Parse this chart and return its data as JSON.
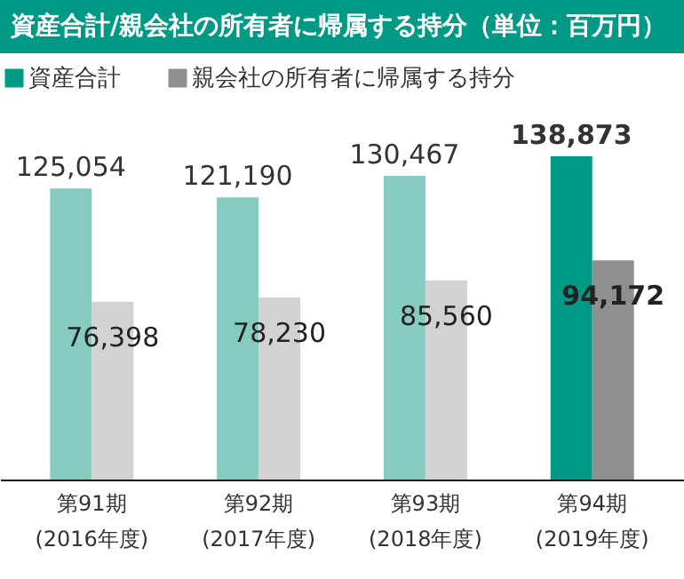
{
  "chart_data": {
    "type": "bar",
    "title": "資産合計/親会社の所有者に帰属する持分（単位：百万円）",
    "categories": [
      "第91期\n(2016年度)",
      "第92期\n(2017年度)",
      "第93期\n(2018年度)",
      "第94期\n(2019年度)"
    ],
    "series": [
      {
        "name": "資産合計",
        "color": "#009985",
        "colors": [
          "#86cbbf",
          "#86cbbf",
          "#86cbbf",
          "#009985"
        ],
        "values": [
          125054,
          121190,
          130467,
          138873
        ],
        "value_labels": [
          "125,054",
          "121,190",
          "130,467",
          "138,873"
        ]
      },
      {
        "name": "親会社の所有者に帰属する持分",
        "color": "#8f8f8f",
        "colors": [
          "#d2d2d2",
          "#d2d2d2",
          "#d2d2d2",
          "#8f8f8f"
        ],
        "values": [
          76398,
          78230,
          85560,
          94172
        ],
        "value_labels": [
          "76,398",
          "78,230",
          "85,560",
          "94,172"
        ]
      }
    ],
    "legend": "top left"
  }
}
